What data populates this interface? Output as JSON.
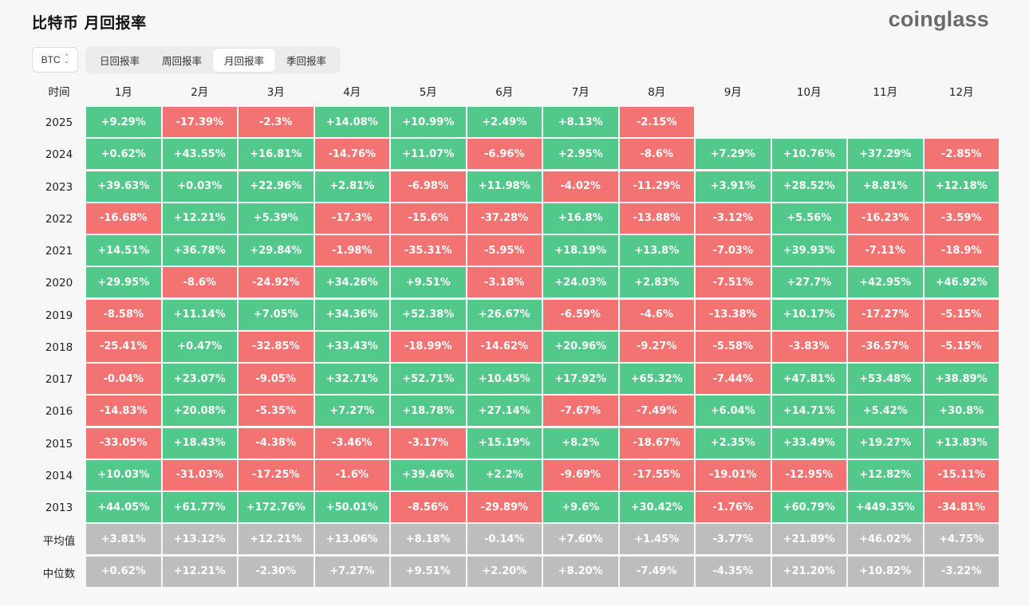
{
  "title": "比特币 月回报率",
  "brand": "coinglass",
  "asset_select": {
    "value": "BTC"
  },
  "tabs": [
    {
      "label": "日回报率",
      "active": false
    },
    {
      "label": "周回报率",
      "active": false
    },
    {
      "label": "月回报率",
      "active": true
    },
    {
      "label": "季回报率",
      "active": false
    }
  ],
  "colors": {
    "positive": "#52c98a",
    "negative": "#f37373",
    "summary": "#bdbdbd"
  },
  "table": {
    "corner": "时间",
    "columns": [
      "1月",
      "2月",
      "3月",
      "4月",
      "5月",
      "6月",
      "7月",
      "8月",
      "9月",
      "10月",
      "11月",
      "12月"
    ],
    "rows": [
      {
        "label": "2025",
        "values": [
          "+9.29%",
          "-17.39%",
          "-2.3%",
          "+14.08%",
          "+10.99%",
          "+2.49%",
          "+8.13%",
          "-2.15%",
          "",
          "",
          "",
          ""
        ]
      },
      {
        "label": "2024",
        "values": [
          "+0.62%",
          "+43.55%",
          "+16.81%",
          "-14.76%",
          "+11.07%",
          "-6.96%",
          "+2.95%",
          "-8.6%",
          "+7.29%",
          "+10.76%",
          "+37.29%",
          "-2.85%"
        ]
      },
      {
        "label": "2023",
        "values": [
          "+39.63%",
          "+0.03%",
          "+22.96%",
          "+2.81%",
          "-6.98%",
          "+11.98%",
          "-4.02%",
          "-11.29%",
          "+3.91%",
          "+28.52%",
          "+8.81%",
          "+12.18%"
        ]
      },
      {
        "label": "2022",
        "values": [
          "-16.68%",
          "+12.21%",
          "+5.39%",
          "-17.3%",
          "-15.6%",
          "-37.28%",
          "+16.8%",
          "-13.88%",
          "-3.12%",
          "+5.56%",
          "-16.23%",
          "-3.59%"
        ]
      },
      {
        "label": "2021",
        "values": [
          "+14.51%",
          "+36.78%",
          "+29.84%",
          "-1.98%",
          "-35.31%",
          "-5.95%",
          "+18.19%",
          "+13.8%",
          "-7.03%",
          "+39.93%",
          "-7.11%",
          "-18.9%"
        ]
      },
      {
        "label": "2020",
        "values": [
          "+29.95%",
          "-8.6%",
          "-24.92%",
          "+34.26%",
          "+9.51%",
          "-3.18%",
          "+24.03%",
          "+2.83%",
          "-7.51%",
          "+27.7%",
          "+42.95%",
          "+46.92%"
        ]
      },
      {
        "label": "2019",
        "values": [
          "-8.58%",
          "+11.14%",
          "+7.05%",
          "+34.36%",
          "+52.38%",
          "+26.67%",
          "-6.59%",
          "-4.6%",
          "-13.38%",
          "+10.17%",
          "-17.27%",
          "-5.15%"
        ]
      },
      {
        "label": "2018",
        "values": [
          "-25.41%",
          "+0.47%",
          "-32.85%",
          "+33.43%",
          "-18.99%",
          "-14.62%",
          "+20.96%",
          "-9.27%",
          "-5.58%",
          "-3.83%",
          "-36.57%",
          "-5.15%"
        ]
      },
      {
        "label": "2017",
        "values": [
          "-0.04%",
          "+23.07%",
          "-9.05%",
          "+32.71%",
          "+52.71%",
          "+10.45%",
          "+17.92%",
          "+65.32%",
          "-7.44%",
          "+47.81%",
          "+53.48%",
          "+38.89%"
        ]
      },
      {
        "label": "2016",
        "values": [
          "-14.83%",
          "+20.08%",
          "-5.35%",
          "+7.27%",
          "+18.78%",
          "+27.14%",
          "-7.67%",
          "-7.49%",
          "+6.04%",
          "+14.71%",
          "+5.42%",
          "+30.8%"
        ]
      },
      {
        "label": "2015",
        "values": [
          "-33.05%",
          "+18.43%",
          "-4.38%",
          "-3.46%",
          "-3.17%",
          "+15.19%",
          "+8.2%",
          "-18.67%",
          "+2.35%",
          "+33.49%",
          "+19.27%",
          "+13.83%"
        ]
      },
      {
        "label": "2014",
        "values": [
          "+10.03%",
          "-31.03%",
          "-17.25%",
          "-1.6%",
          "+39.46%",
          "+2.2%",
          "-9.69%",
          "-17.55%",
          "-19.01%",
          "-12.95%",
          "+12.82%",
          "-15.11%"
        ]
      },
      {
        "label": "2013",
        "values": [
          "+44.05%",
          "+61.77%",
          "+172.76%",
          "+50.01%",
          "-8.56%",
          "-29.89%",
          "+9.6%",
          "+30.42%",
          "-1.76%",
          "+60.79%",
          "+449.35%",
          "-34.81%"
        ]
      }
    ],
    "summary_rows": [
      {
        "label": "平均值",
        "values": [
          "+3.81%",
          "+13.12%",
          "+12.21%",
          "+13.06%",
          "+8.18%",
          "-0.14%",
          "+7.60%",
          "+1.45%",
          "-3.77%",
          "+21.89%",
          "+46.02%",
          "+4.75%"
        ]
      },
      {
        "label": "中位数",
        "values": [
          "+0.62%",
          "+12.21%",
          "-2.30%",
          "+7.27%",
          "+9.51%",
          "+2.20%",
          "+8.20%",
          "-7.49%",
          "-4.35%",
          "+21.20%",
          "+10.82%",
          "-3.22%"
        ]
      }
    ]
  }
}
